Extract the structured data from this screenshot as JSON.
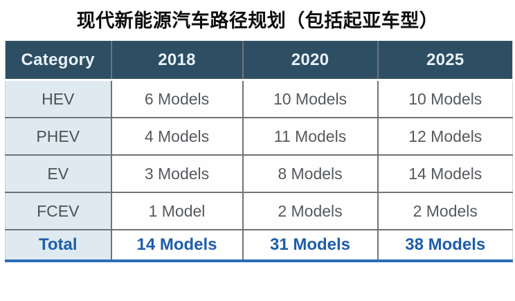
{
  "title": "现代新能源汽车路径规划（包括起亚车型）",
  "table": {
    "columns": [
      "Category",
      "2018",
      "2020",
      "2025"
    ],
    "rows": [
      {
        "category": "HEV",
        "values": [
          "6 Models",
          "10 Models",
          "10 Models"
        ]
      },
      {
        "category": "PHEV",
        "values": [
          "4 Models",
          "11 Models",
          "12 Models"
        ]
      },
      {
        "category": "EV",
        "values": [
          "3 Models",
          "8 Models",
          "14 Models"
        ]
      },
      {
        "category": "FCEV",
        "values": [
          "1 Model",
          "2 Models",
          "2 Models"
        ]
      }
    ],
    "total": {
      "category": "Total",
      "values": [
        "14 Models",
        "31 Models",
        "38 Models"
      ]
    }
  },
  "colors": {
    "header_bg": "#2e4e63",
    "header_text": "#e8f2f8",
    "label_column_bg": "#dfeaf0",
    "cell_text": "#55595d",
    "total_text": "#1e5dab",
    "grid_line": "#6f7377",
    "bottom_accent_line": "#2a6cb7",
    "title_text": "#0d0d0d"
  },
  "chart_data": {
    "type": "table",
    "title": "现代新能源汽车路径规划（包括起亚车型）",
    "columns": [
      "Category",
      "2018",
      "2020",
      "2025"
    ],
    "rows": [
      [
        "HEV",
        "6 Models",
        "10 Models",
        "10 Models"
      ],
      [
        "PHEV",
        "4 Models",
        "11 Models",
        "12 Models"
      ],
      [
        "EV",
        "3 Models",
        "8 Models",
        "14 Models"
      ],
      [
        "FCEV",
        "1 Model",
        "2 Models",
        "2 Models"
      ],
      [
        "Total",
        "14 Models",
        "31 Models",
        "38 Models"
      ]
    ],
    "numeric": {
      "categories": [
        "HEV",
        "PHEV",
        "EV",
        "FCEV"
      ],
      "series": [
        {
          "name": "2018",
          "values": [
            6,
            4,
            3,
            1
          ]
        },
        {
          "name": "2020",
          "values": [
            10,
            11,
            8,
            2
          ]
        },
        {
          "name": "2025",
          "values": [
            10,
            12,
            14,
            2
          ]
        }
      ],
      "totals": {
        "2018": 14,
        "2020": 31,
        "2025": 38
      }
    }
  }
}
